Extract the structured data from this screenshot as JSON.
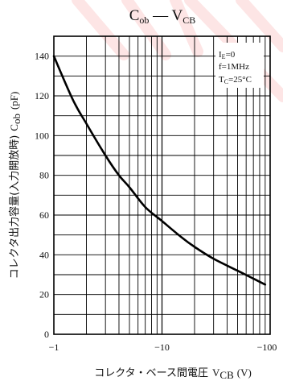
{
  "chart_data": {
    "type": "line",
    "title_main": "C",
    "title_main_sub": "ob",
    "title_sep": " — ",
    "title_var": "V",
    "title_var_sub": "CB",
    "xscale": "log",
    "xlim": [
      -1,
      -100
    ],
    "ylim": [
      0,
      150
    ],
    "grid": true,
    "xticks": [
      {
        "value": -1,
        "label": "−1"
      },
      {
        "value": -10,
        "label": "−10"
      },
      {
        "value": -100,
        "label": "−100"
      }
    ],
    "yticks": [
      0,
      20,
      40,
      60,
      80,
      100,
      120,
      140
    ],
    "xlabel": "コレクタ・ベース間電圧",
    "xlabel_var": "V",
    "xlabel_var_sub": "CB",
    "xlabel_unit": "(V)",
    "ylabel": "コレクタ出力容量(入力開放時)",
    "ylabel_var": "C",
    "ylabel_var_sub": "ob",
    "ylabel_unit": "(pF)",
    "conditions": [
      {
        "main": "I",
        "sub": "E",
        "rest": "=0"
      },
      {
        "main": "f=1MHz",
        "sub": "",
        "rest": ""
      },
      {
        "main": "T",
        "sub": "C",
        "rest": "=25°C"
      }
    ],
    "series": [
      {
        "x": [
          -1,
          -1.5,
          -2,
          -3,
          -4,
          -5,
          -7,
          -10,
          -15,
          -20,
          -30,
          -50,
          -70,
          -90
        ],
        "y": [
          140,
          118,
          106,
          90,
          80,
          74,
          64,
          57,
          49,
          44,
          38,
          32,
          28,
          25
        ]
      }
    ]
  },
  "colors": {
    "line": "#000000",
    "grid": "#000000",
    "frame": "#000000",
    "text": "#111111",
    "watermark": "#ee1111"
  }
}
